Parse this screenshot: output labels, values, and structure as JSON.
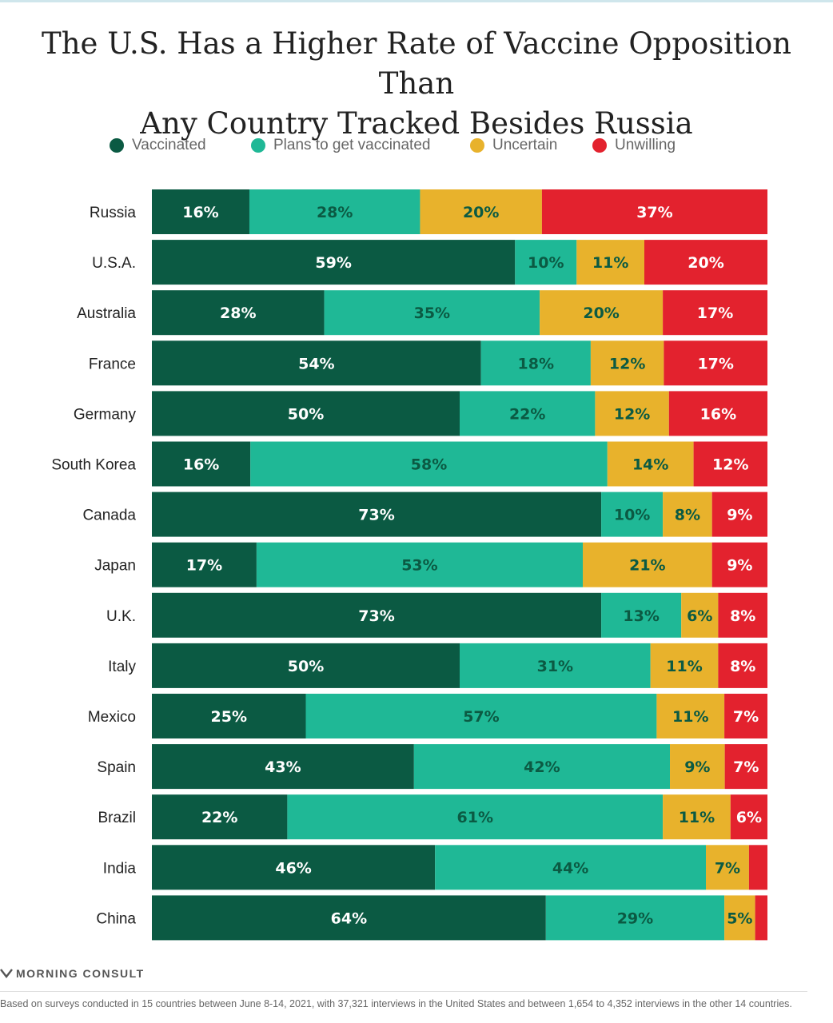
{
  "title_line1": "The U.S. Has a Higher Rate of Vaccine Opposition Than",
  "title_line2": "Any Country Tracked Besides Russia",
  "legend": [
    {
      "label": "Vaccinated",
      "color": "#0b5a43"
    },
    {
      "label": "Plans to get vaccinated",
      "color": "#1fb896"
    },
    {
      "label": "Uncertain",
      "color": "#e8b22c"
    },
    {
      "label": "Unwilling",
      "color": "#e3222e"
    }
  ],
  "chart_data": {
    "type": "bar",
    "orientation": "horizontal",
    "stacked": true,
    "normalized_percent": true,
    "categories": [
      "Russia",
      "U.S.A.",
      "Australia",
      "France",
      "Germany",
      "South Korea",
      "Canada",
      "Japan",
      "U.K.",
      "Italy",
      "Mexico",
      "Spain",
      "Brazil",
      "India",
      "China"
    ],
    "series": [
      {
        "name": "Vaccinated",
        "color": "#0b5a43",
        "values": [
          16,
          59,
          28,
          54,
          50,
          16,
          73,
          17,
          73,
          50,
          25,
          43,
          22,
          46,
          64
        ]
      },
      {
        "name": "Plans to get vaccinated",
        "color": "#1fb896",
        "values": [
          28,
          10,
          35,
          18,
          22,
          58,
          10,
          53,
          13,
          31,
          57,
          42,
          61,
          44,
          29
        ]
      },
      {
        "name": "Uncertain",
        "color": "#e8b22c",
        "values": [
          20,
          11,
          20,
          12,
          12,
          14,
          8,
          21,
          6,
          11,
          11,
          9,
          11,
          7,
          5
        ]
      },
      {
        "name": "Unwilling",
        "color": "#e3222e",
        "values": [
          37,
          20,
          17,
          17,
          16,
          12,
          9,
          9,
          8,
          8,
          7,
          7,
          6,
          3,
          2
        ]
      }
    ],
    "labels": [
      [
        "16%",
        "28%",
        "20%",
        "37%"
      ],
      [
        "59%",
        "10%",
        "11%",
        "20%"
      ],
      [
        "28%",
        "35%",
        "20%",
        "17%"
      ],
      [
        "54%",
        "18%",
        "12%",
        "17%"
      ],
      [
        "50%",
        "22%",
        "12%",
        "16%"
      ],
      [
        "16%",
        "58%",
        "14%",
        "12%"
      ],
      [
        "73%",
        "10%",
        "8%",
        "9%"
      ],
      [
        "17%",
        "53%",
        "21%",
        "9%"
      ],
      [
        "73%",
        "13%",
        "6%",
        "8%"
      ],
      [
        "50%",
        "31%",
        "11%",
        "8%"
      ],
      [
        "25%",
        "57%",
        "11%",
        "7%"
      ],
      [
        "43%",
        "42%",
        "9%",
        "7%"
      ],
      [
        "22%",
        "61%",
        "11%",
        "6%"
      ],
      [
        "46%",
        "44%",
        "7%",
        ""
      ],
      [
        "64%",
        "29%",
        "5%",
        ""
      ]
    ],
    "label_colors": [
      "#ffffff",
      "#0b5a43",
      "#0b5a43",
      "#ffffff"
    ]
  },
  "brand": "MORNING CONSULT",
  "footnote": "Based on surveys conducted in 15 countries between June 8-14, 2021, with 37,321 interviews in the United States and between 1,654 to 4,352 interviews in the other 14 countries."
}
